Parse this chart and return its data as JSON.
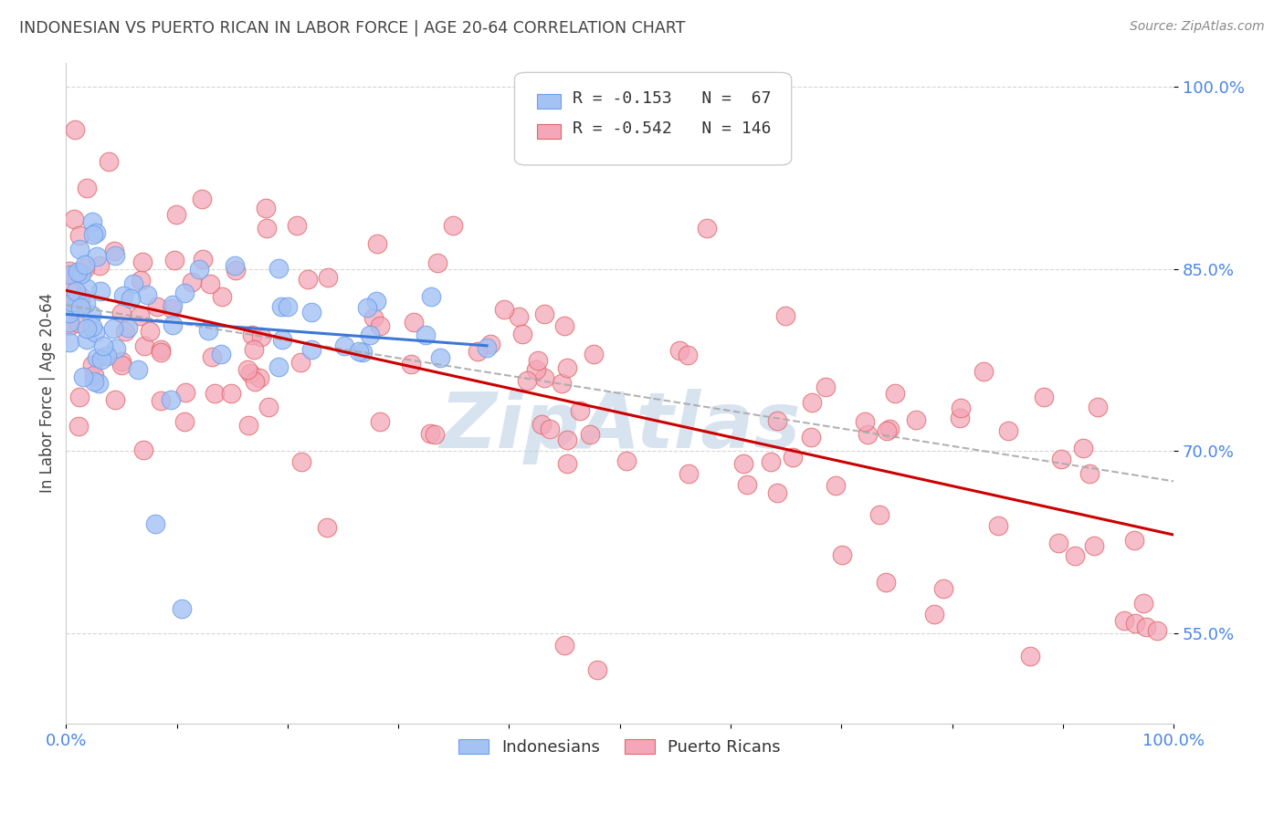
{
  "title": "INDONESIAN VS PUERTO RICAN IN LABOR FORCE | AGE 20-64 CORRELATION CHART",
  "source": "Source: ZipAtlas.com",
  "ylabel": "In Labor Force | Age 20-64",
  "ytick_labels": [
    "55.0%",
    "70.0%",
    "85.0%",
    "100.0%"
  ],
  "ytick_values": [
    0.55,
    0.7,
    0.85,
    1.0
  ],
  "xlim": [
    0.0,
    1.0
  ],
  "ylim": [
    0.475,
    1.02
  ],
  "legend": {
    "indonesian_label": "Indonesians",
    "puerto_rican_label": "Puerto Ricans",
    "R_indonesian": "-0.153",
    "N_indonesian": "67",
    "R_puerto_rican": "-0.542",
    "N_puerto_rican": "146"
  },
  "indonesian_color": "#a4c2f4",
  "puerto_rican_color": "#f4a7b9",
  "indonesian_edge_color": "#6d9eeb",
  "puerto_rican_edge_color": "#e06666",
  "trendline_color_indonesian": "#3c78d8",
  "trendline_color_puerto_rican": "#cc0000",
  "dashed_line_color": "#aaaaaa",
  "background_color": "#ffffff",
  "grid_color": "#cccccc",
  "tick_label_color": "#4a86e8",
  "watermark_color": "#b8cce4",
  "title_color": "#434343",
  "source_color": "#888888",
  "ylabel_color": "#434343"
}
